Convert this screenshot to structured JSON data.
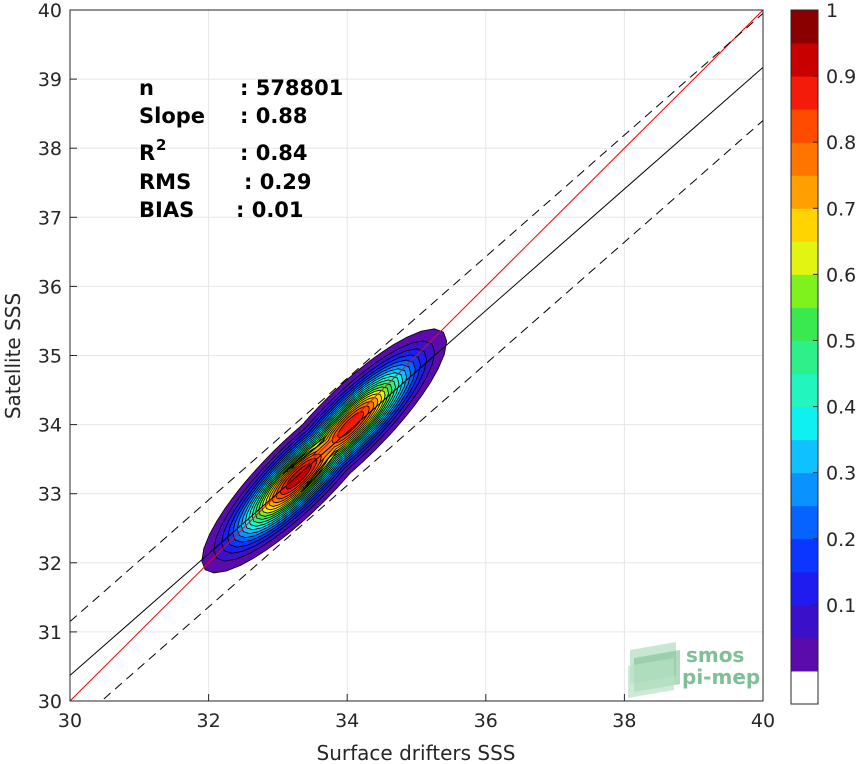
{
  "chart_data": {
    "type": "heatmap",
    "subtype": "density-contour-scatter",
    "xlabel": "Surface drifters SSS",
    "ylabel": "Satellite SSS",
    "xlim": [
      30,
      40
    ],
    "ylim": [
      30,
      40
    ],
    "xticks": [
      "30",
      "32",
      "34",
      "36",
      "38",
      "40"
    ],
    "yticks": [
      "30",
      "31",
      "32",
      "33",
      "34",
      "35",
      "36",
      "37",
      "38",
      "39",
      "40"
    ],
    "grid": true,
    "stats": [
      {
        "label": "n",
        "value": ": 578801"
      },
      {
        "label": "Slope",
        "value": ": 0.88"
      },
      {
        "label": "R",
        "sup": "2",
        "value": ": 0.84"
      },
      {
        "label": "RMS",
        "value": ": 0.29"
      },
      {
        "label": "BIAS",
        "value": ": 0.01"
      }
    ],
    "lines": {
      "identity": {
        "slope": 1,
        "intercept": 0,
        "color": "#ff0000"
      },
      "regression": {
        "slope": 0.88,
        "intercept": 3.97,
        "color": "#000000"
      },
      "upper_bound": {
        "slope": 0.88,
        "intercept": 4.75,
        "color": "#000000",
        "style": "dashed"
      },
      "lower_bound": {
        "slope": 0.88,
        "intercept": 3.2,
        "color": "#000000",
        "style": "dashed"
      }
    },
    "density_peaks": [
      {
        "x": 33.3,
        "y": 33.25,
        "value": 1.0
      },
      {
        "x": 34.05,
        "y": 34.0,
        "value": 0.95
      }
    ],
    "colorbar": {
      "ticks": [
        "0.1",
        "0.2",
        "0.3",
        "0.4",
        "0.5",
        "0.6",
        "0.7",
        "0.8",
        "0.9",
        "1"
      ],
      "levels": [
        0,
        0.05,
        0.1,
        0.15,
        0.2,
        0.25,
        0.3,
        0.35,
        0.4,
        0.45,
        0.5,
        0.55,
        0.6,
        0.65,
        0.7,
        0.75,
        0.8,
        0.85,
        0.9,
        0.95,
        1.0
      ],
      "colors": [
        "#ffffff",
        "#5b0bab",
        "#3a11c9",
        "#1f1cf0",
        "#0a36ff",
        "#0763ff",
        "#0a93ff",
        "#0fc2ff",
        "#0ff0f0",
        "#22f5bd",
        "#2ef08a",
        "#3ae850",
        "#7ff21e",
        "#e2f411",
        "#ffd400",
        "#ffa000",
        "#ff7500",
        "#ff4b00",
        "#f51b0a",
        "#c90000",
        "#8a0000"
      ]
    }
  },
  "watermark": {
    "line1": "smos",
    "line2": "pi-mep"
  }
}
